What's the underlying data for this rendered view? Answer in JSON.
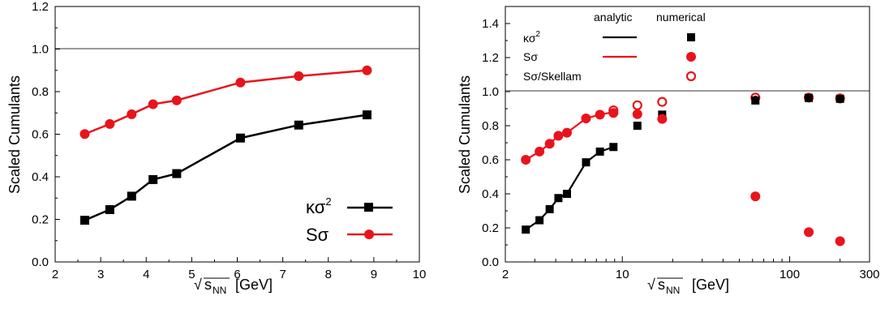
{
  "chart_data": [
    {
      "type": "line",
      "xlabel_root": "s",
      "xlabel_sub": "NN",
      "xlabel_unit": "[GeV]",
      "ylabel": "Scaled Cumulants",
      "xlim": [
        2,
        10
      ],
      "ylim": [
        0.0,
        1.2
      ],
      "x_ticks": [
        "2",
        "3",
        "4",
        "5",
        "6",
        "7",
        "8",
        "9",
        "10"
      ],
      "y_ticks": [
        "0.0",
        "0.2",
        "0.4",
        "0.6",
        "0.8",
        "1.0",
        "1.2"
      ],
      "reference_line": 1.0,
      "legend_position": "bottom-right",
      "legend_kappa": "κσ",
      "legend_kappa_sup": "2",
      "legend_s": "Sσ",
      "series": [
        {
          "name": "κσ2",
          "color": "#000000",
          "marker": "square",
          "x": [
            2.65,
            3.2,
            3.68,
            4.15,
            4.67,
            6.07,
            7.35,
            8.85
          ],
          "y": [
            0.196,
            0.246,
            0.309,
            0.387,
            0.415,
            0.582,
            0.643,
            0.691
          ]
        },
        {
          "name": "Sσ",
          "color": "#e8141b",
          "marker": "circle",
          "x": [
            2.65,
            3.2,
            3.68,
            4.15,
            4.67,
            6.07,
            7.35,
            8.85
          ],
          "y": [
            0.601,
            0.648,
            0.694,
            0.741,
            0.759,
            0.843,
            0.873,
            0.9
          ]
        }
      ]
    },
    {
      "type": "scatter",
      "xscale": "log",
      "xlabel_root": "s",
      "xlabel_sub": "NN",
      "xlabel_unit": "[GeV]",
      "ylabel": "Scaled Cumulants",
      "xlim": [
        2,
        300
      ],
      "ylim": [
        0.0,
        1.5
      ],
      "x_ticks": [
        "2",
        "10",
        "100",
        "300"
      ],
      "y_ticks": [
        "0.0",
        "0.2",
        "0.4",
        "0.6",
        "0.8",
        "1.0",
        "1.2",
        "1.4"
      ],
      "reference_line": 1.0,
      "legend_position": "top",
      "legend_header_analytic": "analytic",
      "legend_header_numerical": "numerical",
      "legend_kappa": "κσ",
      "legend_kappa_sup": "2",
      "legend_s": "Sσ",
      "legend_skellam": "Sσ/Skellam",
      "analytic_lines": [
        {
          "name": "κσ2",
          "color": "#000000",
          "x": [
            2.65,
            3.2,
            3.68,
            4.15,
            4.67,
            6.07,
            7.35,
            8.85
          ],
          "y": [
            0.19,
            0.245,
            0.31,
            0.375,
            0.4,
            0.585,
            0.648,
            0.675
          ]
        },
        {
          "name": "Sσ",
          "color": "#e8141b",
          "x": [
            2.65,
            3.2,
            3.68,
            4.15,
            4.67,
            6.07,
            7.35,
            8.85
          ],
          "y": [
            0.6,
            0.648,
            0.694,
            0.741,
            0.759,
            0.843,
            0.865,
            0.88
          ]
        }
      ],
      "numerical_kappa": {
        "color": "#000000",
        "marker": "square",
        "x": [
          2.65,
          3.2,
          3.68,
          4.15,
          4.67,
          6.07,
          7.35,
          8.85,
          12.3,
          17.3,
          62.4,
          130,
          200
        ],
        "y": [
          0.19,
          0.245,
          0.31,
          0.375,
          0.4,
          0.585,
          0.648,
          0.675,
          0.8,
          0.865,
          0.948,
          0.963,
          0.958
        ]
      },
      "numerical_s": {
        "color": "#e8141b",
        "marker": "circle",
        "x": [
          2.65,
          3.2,
          3.68,
          4.15,
          4.67,
          6.07,
          7.35,
          8.85,
          12.3,
          17.3,
          62.4,
          130,
          200
        ],
        "y": [
          0.6,
          0.648,
          0.694,
          0.741,
          0.759,
          0.843,
          0.865,
          0.875,
          0.868,
          0.84,
          0.385,
          0.175,
          0.122
        ]
      },
      "numerical_skellam": {
        "color": "#e8141b",
        "marker": "open-circle",
        "x": [
          8.85,
          12.3,
          17.3,
          62.4,
          130,
          200
        ],
        "y": [
          0.89,
          0.92,
          0.94,
          0.965,
          0.965,
          0.96
        ]
      }
    }
  ]
}
